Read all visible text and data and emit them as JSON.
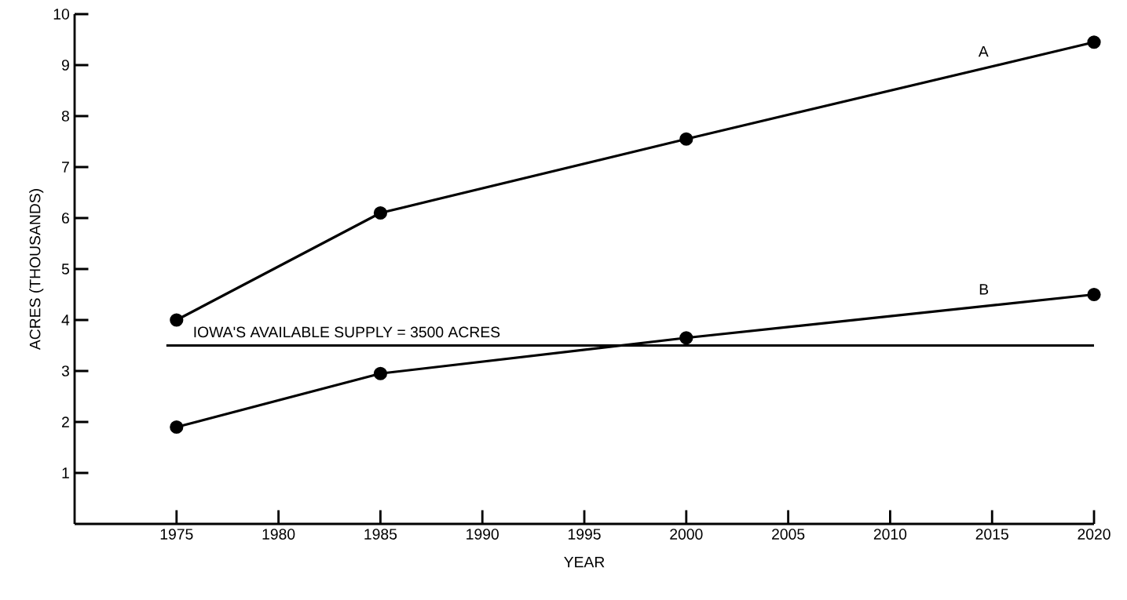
{
  "chart_data": {
    "type": "line",
    "xlabel": "YEAR",
    "ylabel": "ACRES  (THOUSANDS)",
    "x": [
      1975,
      1985,
      2000,
      2020
    ],
    "series": [
      {
        "name": "A",
        "color": "#000000",
        "values": [
          4.0,
          6.1,
          7.55,
          9.45
        ]
      },
      {
        "name": "B",
        "color": "#000000",
        "values": [
          1.9,
          2.95,
          3.65,
          4.5
        ]
      }
    ],
    "xlim": [
      1970,
      2020
    ],
    "ylim": [
      0,
      10
    ],
    "xticks": [
      1975,
      1980,
      1985,
      1990,
      1995,
      2000,
      2005,
      2010,
      2015,
      2020
    ],
    "yticks": [
      1,
      2,
      3,
      4,
      5,
      6,
      7,
      8,
      9,
      10
    ],
    "ref_lines": [
      {
        "axis": "y",
        "value": 3.5,
        "label": "IOWA'S AVAILABLE SUPPLY = 3500 ACRES",
        "color": "#000000"
      }
    ],
    "marker": "circle",
    "line_style": "solid"
  }
}
